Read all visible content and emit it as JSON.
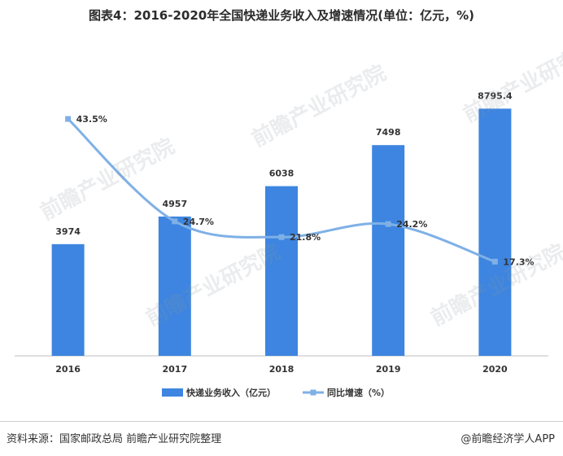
{
  "title": "图表4：2016-2020年全国快递业务收入及增速情况(单位：亿元，%)",
  "source": "资料来源：国家邮政总局 前瞻产业研究院整理",
  "brand": "@前瞻经济学人APP",
  "watermark": "前瞻产业研究院",
  "colors": {
    "bar": "#3d85e0",
    "line": "#7fb0e6",
    "text": "#333333"
  },
  "chart_data": {
    "type": "bar",
    "categories": [
      "2016",
      "2017",
      "2018",
      "2019",
      "2020"
    ],
    "series": [
      {
        "name": "快递业务收入（亿元）",
        "type": "bar",
        "values": [
          3974,
          4957,
          6038,
          7498,
          8795.4
        ],
        "labels": [
          "3974",
          "4957",
          "6038",
          "7498",
          "8795.4"
        ]
      },
      {
        "name": "同比增速（%）",
        "type": "line",
        "values": [
          43.5,
          24.7,
          21.8,
          24.2,
          17.3
        ],
        "labels": [
          "43.5%",
          "24.7%",
          "21.8%",
          "24.2%",
          "17.3%"
        ]
      }
    ],
    "ylim": [
      0,
      9300
    ],
    "y2lim": [
      0,
      48
    ],
    "legend": "bottom",
    "grid": false
  }
}
